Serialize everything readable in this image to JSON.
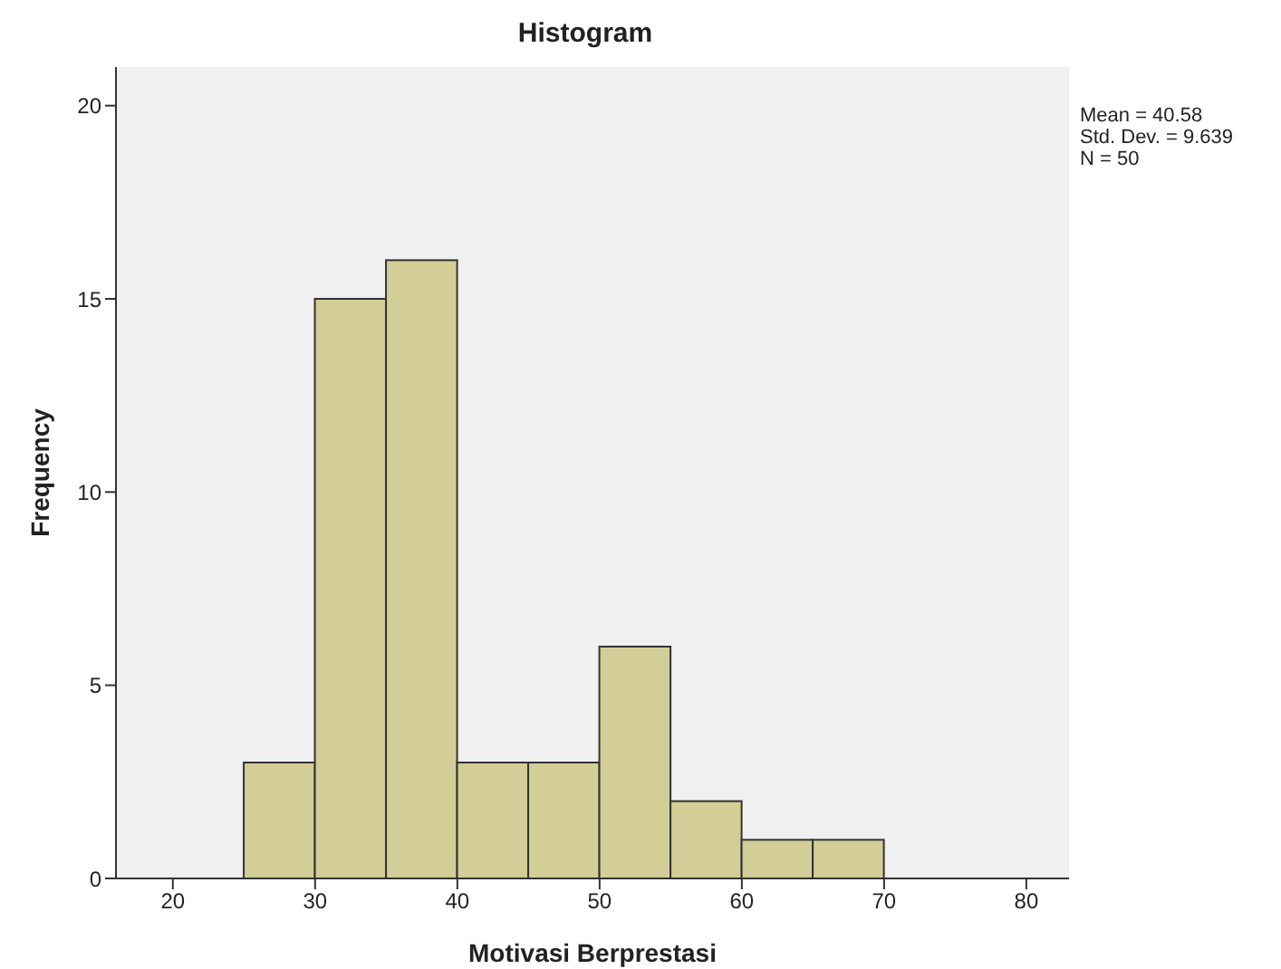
{
  "chart_data": {
    "type": "histogram",
    "title": "Histogram",
    "xlabel": "Motivasi Berprestasi",
    "ylabel": "Frequency",
    "bins": [
      25,
      30,
      35,
      40,
      45,
      50,
      55,
      60,
      65,
      70
    ],
    "values": [
      3,
      15,
      16,
      3,
      3,
      6,
      2,
      1,
      1
    ],
    "color": "#d3ce97",
    "xlim": [
      16,
      83
    ],
    "xticks": [
      20,
      30,
      40,
      50,
      60,
      70,
      80
    ],
    "ylim": [
      0,
      21
    ],
    "yticks": [
      0,
      5,
      10,
      15,
      20
    ],
    "grid": false,
    "annotations": [
      "Mean = 40.58",
      "Std. Dev. = 9.639",
      "N = 50"
    ]
  }
}
